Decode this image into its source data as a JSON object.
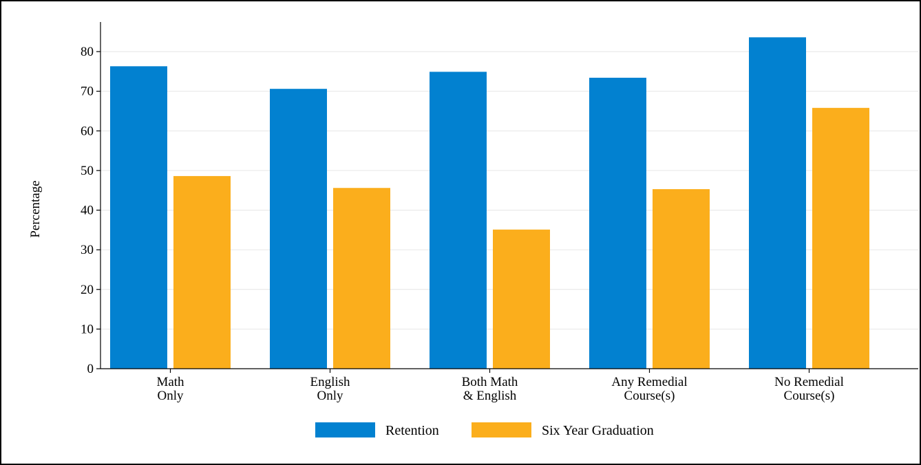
{
  "chart_data": {
    "type": "bar",
    "title": "",
    "xlabel": "",
    "ylabel": "Percentage",
    "ylim": [
      0,
      88
    ],
    "yticks": [
      0,
      10,
      20,
      30,
      40,
      50,
      60,
      70,
      80
    ],
    "grid": true,
    "legend_placement": "bottom-center",
    "categories": [
      [
        "Math",
        "Only"
      ],
      [
        "English",
        "Only"
      ],
      [
        "Both Math",
        "& English"
      ],
      [
        "Any Remedial",
        "Course(s)"
      ],
      [
        "No Remedial",
        "Course(s)"
      ]
    ],
    "series": [
      {
        "name": "Retention",
        "color": "#0281d0",
        "values": [
          76.3,
          70.6,
          74.9,
          73.4,
          83.6
        ]
      },
      {
        "name": "Six Year Graduation",
        "color": "#fbae1c",
        "values": [
          48.6,
          45.6,
          35.1,
          45.3,
          65.8
        ]
      }
    ]
  }
}
